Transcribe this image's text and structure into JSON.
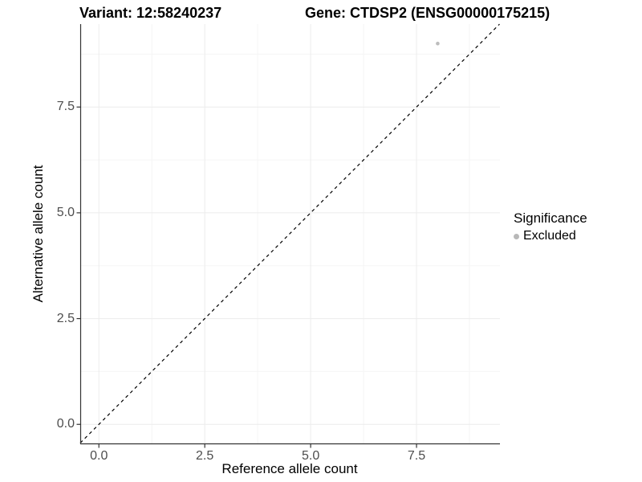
{
  "header": {
    "variant_title": "Variant: 12:58240237",
    "gene_title": "Gene: CTDSP2 (ENSG00000175215)"
  },
  "legend": {
    "title": "Significance",
    "items": [
      {
        "label": "Excluded",
        "marker": "point-icon",
        "color": "#b8b8b8"
      }
    ]
  },
  "chart_data": {
    "type": "scatter",
    "title": "Variant: 12:58240237  Gene: CTDSP2 (ENSG00000175215)",
    "xlabel": "Reference allele count",
    "ylabel": "Alternative allele count",
    "xlim": [
      -0.44,
      9.47
    ],
    "ylim": [
      -0.47,
      9.46
    ],
    "x_ticks": [
      0,
      2.5,
      5,
      7.5
    ],
    "x_tick_labels": [
      "0.0",
      "2.5",
      "5.0",
      "7.5"
    ],
    "y_ticks": [
      0,
      2.5,
      5,
      7.5
    ],
    "y_tick_labels": [
      "0.0",
      "2.5",
      "5.0",
      "7.5"
    ],
    "x_minor_ticks": [
      1.25,
      3.75,
      6.25,
      8.75
    ],
    "y_minor_ticks": [
      1.25,
      3.75,
      6.25,
      8.75
    ],
    "grid": true,
    "legend_position": "right",
    "series": [
      {
        "name": "Excluded",
        "color": "#bdbdbd",
        "points": [
          {
            "x": 8,
            "y": 9
          }
        ]
      }
    ],
    "reference_line": {
      "equation": "y = x",
      "style": "dashed",
      "color": "#000000"
    }
  }
}
